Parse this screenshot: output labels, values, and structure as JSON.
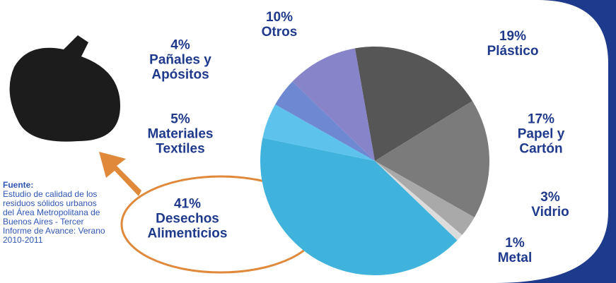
{
  "chart_data": {
    "type": "pie",
    "categories": [
      "Plástico",
      "Papel y Cartón",
      "Vidrio",
      "Metal",
      "Desechos Alimenticios",
      "Materiales Textiles",
      "Pañales y Apósitos",
      "Otros"
    ],
    "values": [
      19,
      17,
      3,
      1,
      41,
      5,
      4,
      10
    ],
    "value_labels": [
      "19%",
      "17%",
      "3%",
      "1%",
      "41%",
      "5%",
      "4%",
      "10%"
    ],
    "colors": [
      "#565656",
      "#7b7b7b",
      "#a9a9a9",
      "#dcdcdc",
      "#3fb3dc",
      "#5ec3ec",
      "#6f88d2",
      "#8784c9"
    ],
    "source_title": "Fuente:",
    "source": "Estudio de calidad de los residuos sólidos urbanos del Área Metropolitana de Buenos Aires - Tercer Informe de Avance: Verano 2010-2011"
  }
}
